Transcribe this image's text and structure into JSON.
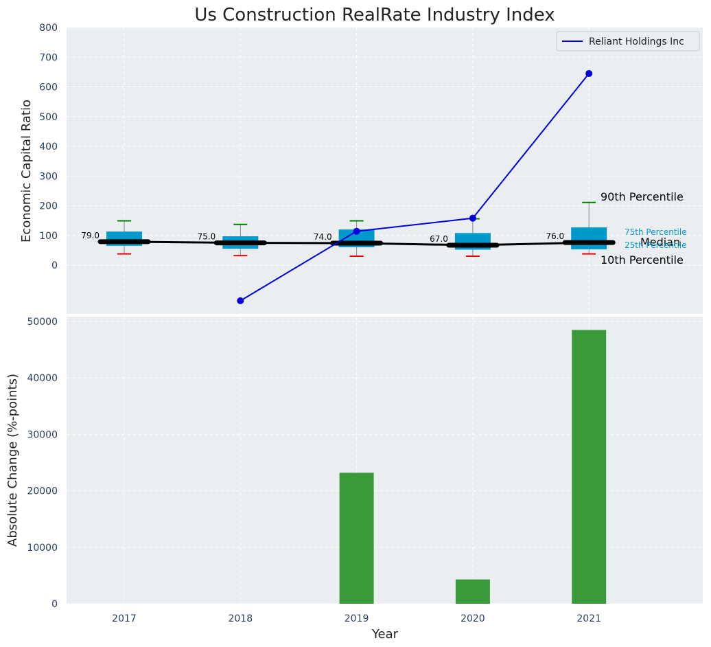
{
  "chart_data": [
    {
      "type": "box",
      "title": "Us Construction RealRate Industry Index",
      "xlabel": "",
      "ylabel": "Economic Capital Ratio",
      "ylim": [
        -170,
        800
      ],
      "yticks": [
        0,
        100,
        200,
        300,
        400,
        500,
        600,
        700,
        800
      ],
      "grid": true,
      "legend_position": "top-right",
      "categories": [
        "2017",
        "2018",
        "2019",
        "2020",
        "2021"
      ],
      "boxes": [
        {
          "year": "2017",
          "p10": 38,
          "p25": 65,
          "median": 79,
          "p75": 113,
          "p90": 149,
          "median_label": "79.0"
        },
        {
          "year": "2018",
          "p10": 32,
          "p25": 55,
          "median": 75,
          "p75": 97,
          "p90": 137,
          "median_label": "75.0"
        },
        {
          "year": "2019",
          "p10": 30,
          "p25": 60,
          "median": 74,
          "p75": 120,
          "p90": 149,
          "median_label": "74.0"
        },
        {
          "year": "2020",
          "p10": 30,
          "p25": 52,
          "median": 67,
          "p75": 108,
          "p90": 156,
          "median_label": "67.0"
        },
        {
          "year": "2021",
          "p10": 38,
          "p25": 53,
          "median": 76,
          "p75": 127,
          "p90": 211,
          "median_label": "76.0"
        }
      ],
      "series": [
        {
          "name": "Reliant Holdings Inc",
          "color": "#0000dd",
          "x": [
            "2018",
            "2019",
            "2020",
            "2021"
          ],
          "values": [
            -120,
            114,
            158,
            645
          ]
        }
      ],
      "annotations": {
        "p90": "90th Percentile",
        "p75": "75th Percentile",
        "median": "Median",
        "p25": "25th Percentile",
        "p10": "10th Percentile"
      },
      "colors": {
        "box": "#0099cc",
        "median_line": "#000000",
        "p90_cap": "#008000",
        "p10_cap": "#ff0000",
        "background": "#eaeef0"
      }
    },
    {
      "type": "bar",
      "title": "",
      "xlabel": "Year",
      "ylabel": "Absolute Change (%-points)",
      "ylim": [
        0,
        51000
      ],
      "yticks": [
        0,
        10000,
        20000,
        30000,
        40000,
        50000
      ],
      "categories": [
        "2017",
        "2018",
        "2019",
        "2020",
        "2021"
      ],
      "values": [
        0,
        0,
        23200,
        4300,
        48500
      ],
      "color": "#3a9a3a",
      "grid": true
    }
  ]
}
